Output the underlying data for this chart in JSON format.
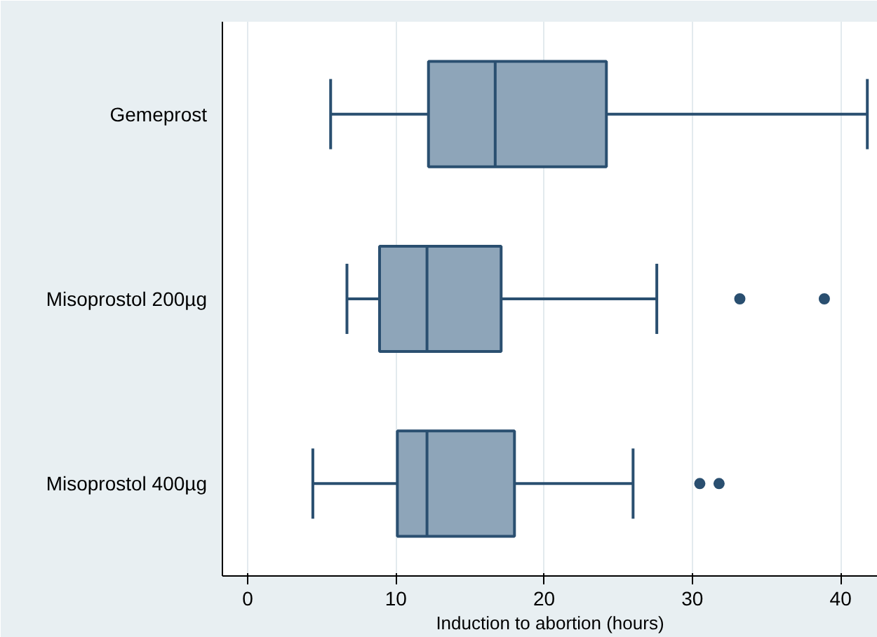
{
  "chart_data": {
    "type": "box",
    "orientation": "horizontal",
    "categories": [
      "Gemeprost",
      "Misoprostol 200µg",
      "Misoprostol 400µg"
    ],
    "boxes": [
      {
        "low": 5.6,
        "q1": 12.2,
        "median": 16.7,
        "q3": 24.2,
        "high": 41.8
      },
      {
        "low": 6.7,
        "q1": 8.9,
        "median": 12.1,
        "q3": 17.1,
        "high": 27.6,
        "outliers": [
          33.2,
          38.9
        ]
      },
      {
        "low": 4.4,
        "q1": 10.1,
        "median": 12.1,
        "q3": 18.0,
        "high": 26.0,
        "outliers": [
          30.5,
          31.8
        ]
      }
    ],
    "color": "#8ea5b9",
    "xlabel": "Induction to abortion (hours)",
    "xlim": [
      -1.7,
      42.5
    ],
    "xticks": [
      0,
      10,
      20,
      30,
      40
    ],
    "grid": "x"
  }
}
